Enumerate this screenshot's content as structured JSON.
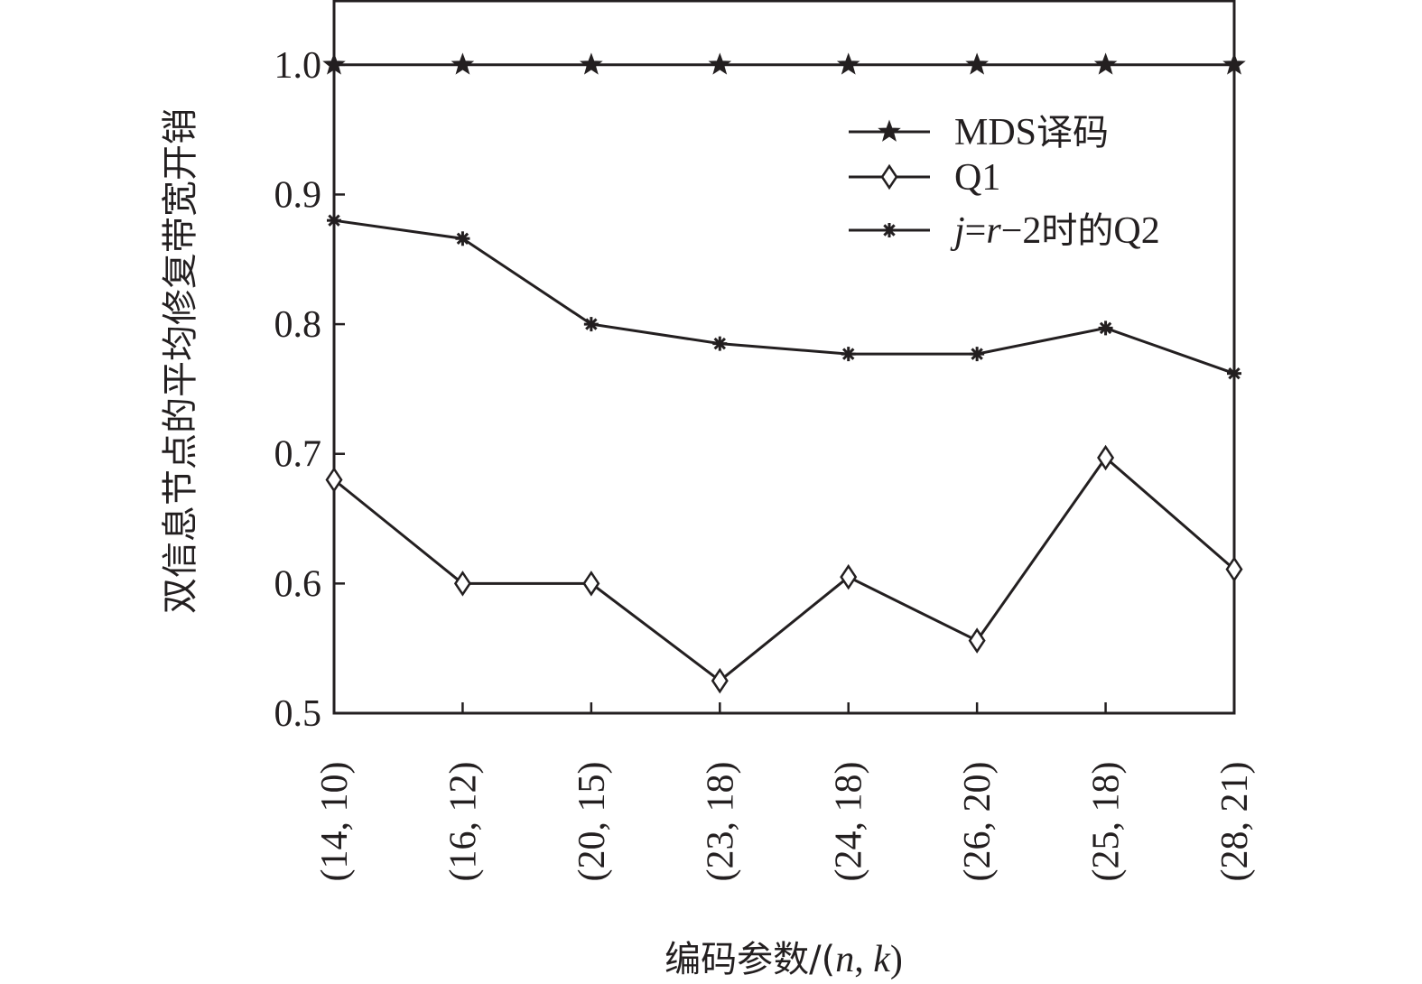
{
  "chart_data": {
    "type": "line",
    "title": "",
    "xlabel": "编码参数/(n, k)",
    "xlabel_parts": {
      "prefix": "编码参数/(",
      "n": "n",
      "sep": ", ",
      "k": "k",
      "suffix": ")"
    },
    "ylabel": "双信息节点的平均修复带宽开销",
    "ylim": [
      0.5,
      1.05
    ],
    "yticks": [
      0.5,
      0.6,
      0.7,
      0.8,
      0.9,
      1.0
    ],
    "ytick_labels": [
      "0.5",
      "0.6",
      "0.7",
      "0.8",
      "0.9",
      "1.0"
    ],
    "categories": [
      "(14, 10)",
      "(16, 12)",
      "(20, 15)",
      "(23, 18)",
      "(24, 18)",
      "(26, 20)",
      "(25, 18)",
      "(28, 21)"
    ],
    "legend_position": "top-right",
    "grid": false,
    "series": [
      {
        "name": "MDS译码",
        "marker": "star",
        "values": [
          1.0,
          1.0,
          1.0,
          1.0,
          1.0,
          1.0,
          1.0,
          1.0
        ]
      },
      {
        "name": "Q1",
        "marker": "diamond",
        "values": [
          0.68,
          0.6,
          0.6,
          0.525,
          0.605,
          0.556,
          0.697,
          0.611
        ]
      },
      {
        "name": "j=r−2时的Q2",
        "name_parts": {
          "j": "j",
          "eq": "=",
          "r": "r",
          "rest": "−2",
          "zh": "时的",
          "q": "Q2"
        },
        "marker": "asterisk",
        "values": [
          0.88,
          0.866,
          0.8,
          0.785,
          0.777,
          0.777,
          0.797,
          0.762
        ]
      }
    ],
    "colors": {
      "line": "#231f20",
      "background": "#ffffff"
    }
  }
}
